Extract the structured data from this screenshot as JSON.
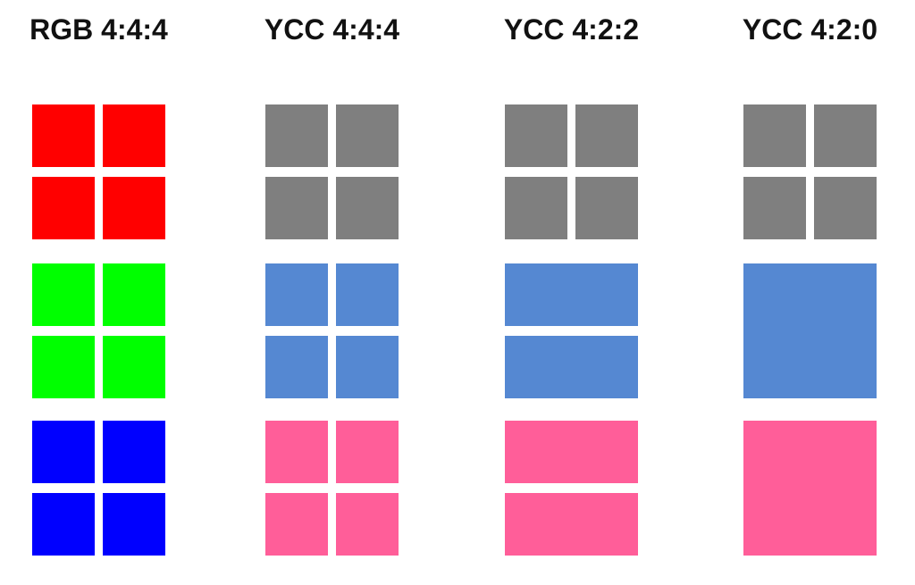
{
  "page": {
    "background": "#FFFFFF",
    "title_color": "#111111",
    "description": "Chroma subsampling comparison diagram"
  },
  "colors": {
    "red": "#FF0000",
    "green": "#00FF00",
    "blue": "#0000FF",
    "luma_gray": "#7F7F7F",
    "chroma_blue": "#5588D2",
    "chroma_pink": "#FF5E99"
  },
  "columns": [
    {
      "title": "RGB 4:4:4",
      "groups": [
        {
          "name": "red-channel",
          "color": "red",
          "layout": "2x2",
          "samples": 4
        },
        {
          "name": "green-channel",
          "color": "green",
          "layout": "2x2",
          "samples": 4
        },
        {
          "name": "blue-channel",
          "color": "blue",
          "layout": "2x2",
          "samples": 4
        }
      ]
    },
    {
      "title": "YCC 4:4:4",
      "groups": [
        {
          "name": "luma",
          "color": "luma_gray",
          "layout": "2x2",
          "samples": 4
        },
        {
          "name": "chroma-cb",
          "color": "chroma_blue",
          "layout": "2x2",
          "samples": 4
        },
        {
          "name": "chroma-cr",
          "color": "chroma_pink",
          "layout": "2x2",
          "samples": 4
        }
      ]
    },
    {
      "title": "YCC 4:2:2",
      "groups": [
        {
          "name": "luma",
          "color": "luma_gray",
          "layout": "2x2",
          "samples": 4
        },
        {
          "name": "chroma-cb",
          "color": "chroma_blue",
          "layout": "1x2",
          "samples": 2
        },
        {
          "name": "chroma-cr",
          "color": "chroma_pink",
          "layout": "1x2",
          "samples": 2
        }
      ]
    },
    {
      "title": "YCC 4:2:0",
      "groups": [
        {
          "name": "luma",
          "color": "luma_gray",
          "layout": "2x2",
          "samples": 4
        },
        {
          "name": "chroma-cb",
          "color": "chroma_blue",
          "layout": "1x1",
          "samples": 1
        },
        {
          "name": "chroma-cr",
          "color": "chroma_pink",
          "layout": "1x1",
          "samples": 1
        }
      ]
    }
  ]
}
